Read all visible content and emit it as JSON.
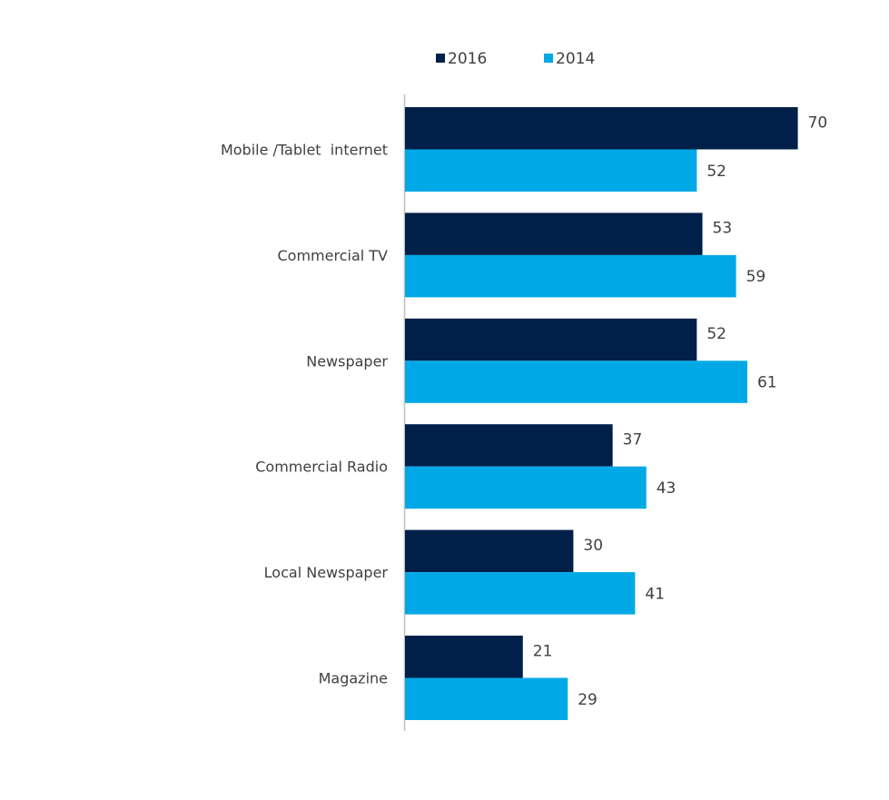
{
  "chart_data": {
    "type": "bar",
    "orientation": "horizontal",
    "title": "",
    "xlabel": "",
    "ylabel": "",
    "categories": [
      "Mobile /Tablet  internet",
      "Commercial TV",
      "Newspaper",
      "Commercial Radio",
      "Local Newspaper",
      "Magazine"
    ],
    "series": [
      {
        "name": "2016",
        "color": "#00204a",
        "values": [
          70,
          53,
          52,
          37,
          30,
          21
        ]
      },
      {
        "name": "2014",
        "color": "#00a8e6",
        "values": [
          52,
          59,
          61,
          43,
          41,
          29
        ]
      }
    ],
    "xlim": [
      0,
      80
    ],
    "grid": false,
    "legend": "top",
    "axis_color": "#c0c0c0"
  }
}
